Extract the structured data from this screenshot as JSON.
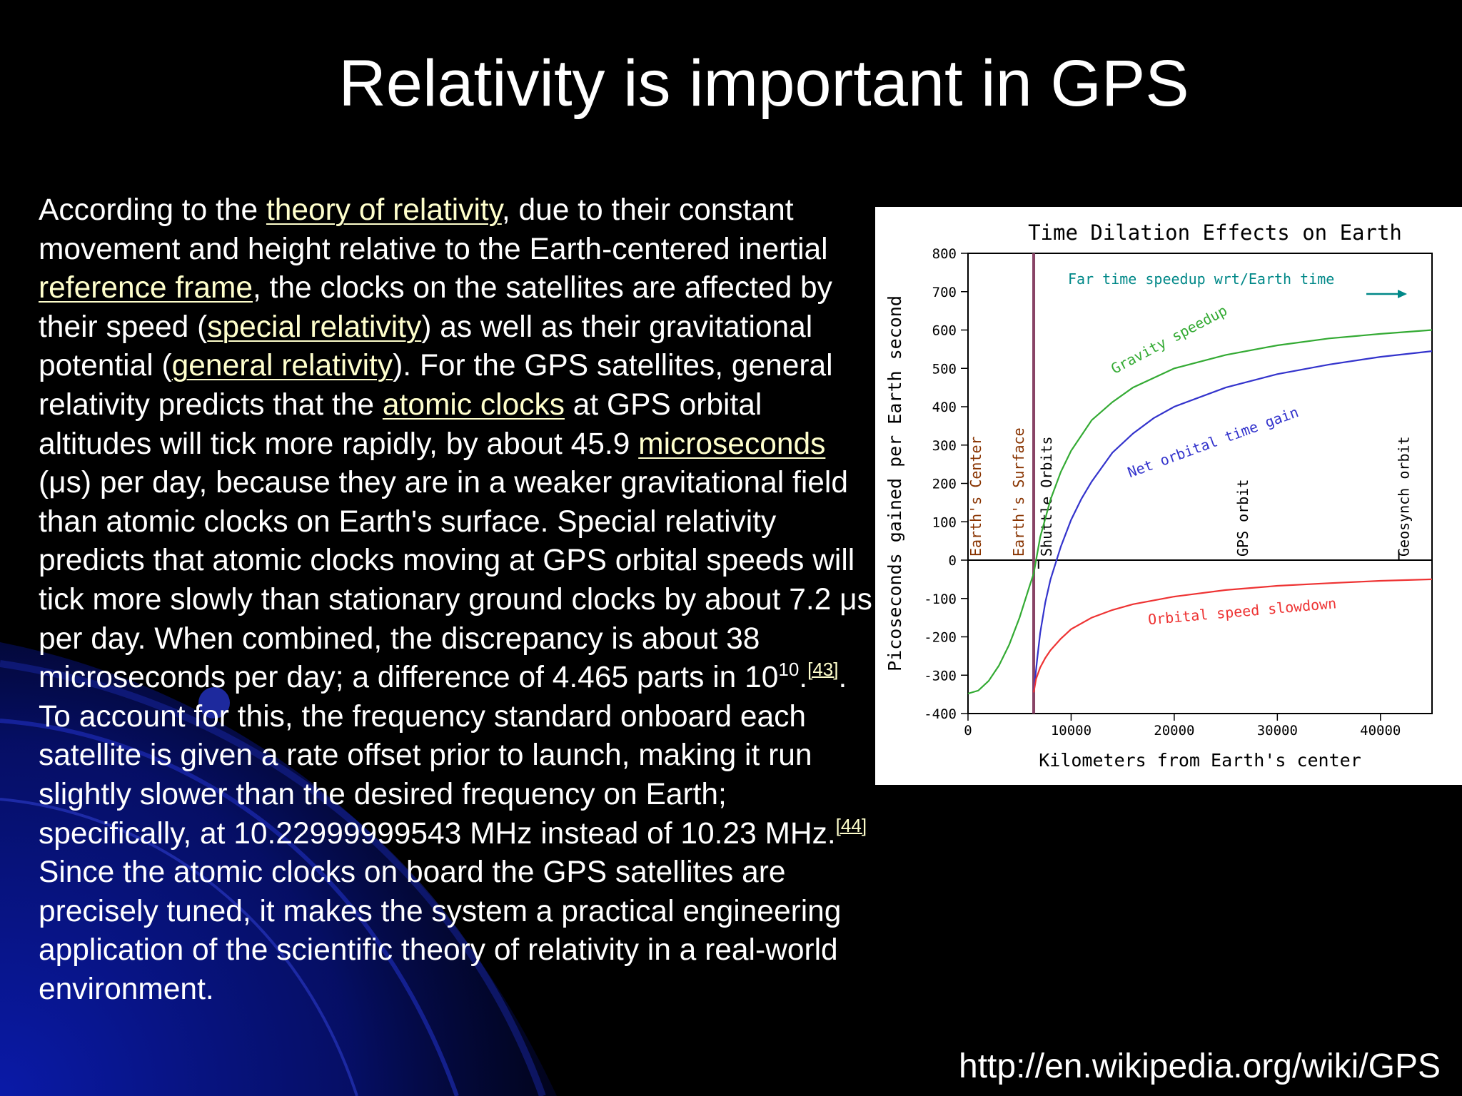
{
  "slide": {
    "title": "Relativity is important in GPS",
    "source_url": "http://en.wikipedia.org/wiki/GPS"
  },
  "body": {
    "t1": "According to the ",
    "link_theory": "theory of relativity",
    "t2": ", due to their constant movement and height relative to the Earth-centered inertial ",
    "link_frame": "reference frame",
    "t3": ", the clocks on the satellites are affected by their speed (",
    "link_special": "special relativity",
    "t4": ") as well as their gravitational potential (",
    "link_general": "general relativity",
    "t5": "). For the GPS satellites, general relativity predicts that the ",
    "link_atomic": "atomic clocks",
    "t6": " at GPS orbital altitudes will tick more rapidly, by about 45.9 ",
    "link_micro": "microseconds",
    "t7": " (μs) per day, because they are in a weaker gravitational field than atomic clocks on Earth's surface. Special relativity predicts that atomic clocks moving at GPS orbital speeds will tick more slowly than stationary ground clocks by about 7.2 μs per day. When combined, the discrepancy is about 38 microseconds per day; a difference of 4.465 parts in 10",
    "exponent": "10",
    "t8": ".",
    "ref43": "[43]",
    "t9": ". To account for this, the frequency standard onboard each satellite is given a rate offset prior to launch, making it run slightly slower than the desired frequency on Earth; specifically, at 10.22999999543 MHz instead of 10.23 MHz.",
    "ref44": "[44]",
    "t10": " Since the atomic clocks on board the GPS satellites are precisely tuned, it makes the system a practical engineering application of the scientific theory of relativity in a real-world environment."
  },
  "colors": {
    "background": "#000000",
    "link": "#ffffcc",
    "gravity": "#33aa33",
    "net": "#3333cc",
    "orbital": "#ee3333",
    "annotation": "#008888",
    "earth_label": "#883300",
    "surface_line": "#884466"
  },
  "chart_data": {
    "type": "line",
    "title": "Time Dilation Effects on Earth",
    "xlabel": "Kilometers from Earth's center",
    "ylabel": "Picoseconds gained per Earth second",
    "xlim": [
      0,
      45000
    ],
    "ylim": [
      -400,
      800
    ],
    "x_ticks": [
      0,
      10000,
      20000,
      30000,
      40000
    ],
    "x_tick_labels": [
      "0",
      "10000",
      "20000",
      "30000",
      "40000"
    ],
    "y_ticks": [
      800,
      700,
      600,
      500,
      400,
      300,
      200,
      100,
      0,
      -100,
      -200,
      -300,
      -400
    ],
    "y_tick_labels": [
      "800",
      "700",
      "600",
      "500",
      "400",
      "300",
      "200",
      "100",
      "0",
      "-100",
      "-200",
      "-300",
      "-400"
    ],
    "grid": false,
    "series": [
      {
        "name": "Gravity speedup",
        "color": "#33aa33",
        "points": [
          [
            0,
            -348
          ],
          [
            1000,
            -340
          ],
          [
            2000,
            -315
          ],
          [
            3000,
            -275
          ],
          [
            4000,
            -220
          ],
          [
            5000,
            -150
          ],
          [
            6000,
            -65
          ],
          [
            6371,
            -35
          ],
          [
            7000,
            60
          ],
          [
            8000,
            158
          ],
          [
            9000,
            230
          ],
          [
            10000,
            285
          ],
          [
            12000,
            365
          ],
          [
            14000,
            412
          ],
          [
            16000,
            450
          ],
          [
            20000,
            500
          ],
          [
            25000,
            535
          ],
          [
            30000,
            560
          ],
          [
            35000,
            578
          ],
          [
            40000,
            590
          ],
          [
            45000,
            600
          ]
        ]
      },
      {
        "name": "Net orbital time gain",
        "color": "#3333cc",
        "points": [
          [
            6371,
            -345
          ],
          [
            6700,
            -260
          ],
          [
            7000,
            -190
          ],
          [
            7500,
            -110
          ],
          [
            8000,
            -50
          ],
          [
            9000,
            35
          ],
          [
            10000,
            105
          ],
          [
            11000,
            160
          ],
          [
            12000,
            205
          ],
          [
            14000,
            280
          ],
          [
            16000,
            330
          ],
          [
            18000,
            370
          ],
          [
            20000,
            400
          ],
          [
            25000,
            450
          ],
          [
            30000,
            485
          ],
          [
            35000,
            510
          ],
          [
            40000,
            530
          ],
          [
            45000,
            545
          ]
        ]
      },
      {
        "name": "Orbital speed slowdown",
        "color": "#ee3333",
        "points": [
          [
            6371,
            -345
          ],
          [
            6600,
            -310
          ],
          [
            7000,
            -280
          ],
          [
            7500,
            -255
          ],
          [
            8000,
            -235
          ],
          [
            9000,
            -205
          ],
          [
            10000,
            -180
          ],
          [
            12000,
            -150
          ],
          [
            14000,
            -130
          ],
          [
            16000,
            -115
          ],
          [
            20000,
            -95
          ],
          [
            25000,
            -78
          ],
          [
            30000,
            -67
          ],
          [
            35000,
            -60
          ],
          [
            40000,
            -54
          ],
          [
            45000,
            -50
          ]
        ]
      }
    ],
    "vertical_markers": [
      {
        "label": "Earth's Center",
        "x": 0,
        "color": "#883300"
      },
      {
        "label": "Earth's Surface",
        "x": 6371,
        "color": "#883300"
      },
      {
        "label": "Shuttle Orbits",
        "x": 6700,
        "color": "#000000"
      },
      {
        "label": "GPS orbit",
        "x": 26600,
        "color": "#000000"
      },
      {
        "label": "Geosynch orbit",
        "x": 42200,
        "color": "#000000"
      }
    ],
    "annotations": [
      {
        "text": "Far time speedup wrt/Earth time",
        "color": "#008888"
      }
    ]
  }
}
